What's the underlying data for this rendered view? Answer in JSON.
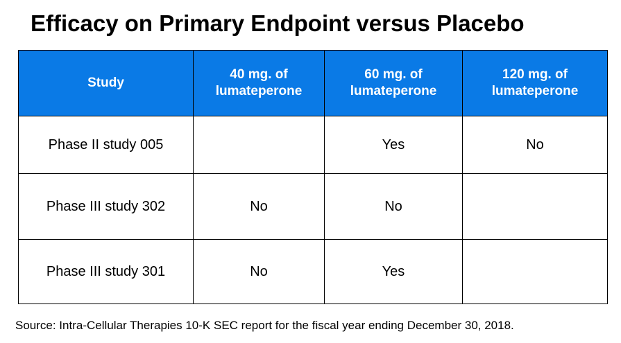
{
  "title": "Efficacy on Primary Endpoint versus Placebo",
  "table": {
    "headers": [
      "Study",
      "40 mg. of lumateperone",
      "60 mg. of lumateperone",
      "120 mg. of lumateperone"
    ],
    "rows": [
      [
        "Phase II study 005",
        "",
        "Yes",
        "No"
      ],
      [
        "Phase III study 302",
        "No",
        "No",
        ""
      ],
      [
        "Phase III study 301",
        "No",
        "Yes",
        ""
      ]
    ]
  },
  "source": "Source: Intra-Cellular Therapies 10-K SEC report for the fiscal year ending December 30, 2018.",
  "colors": {
    "header_background": "#0a7ae6",
    "header_text": "#ffffff",
    "border": "#000000"
  }
}
